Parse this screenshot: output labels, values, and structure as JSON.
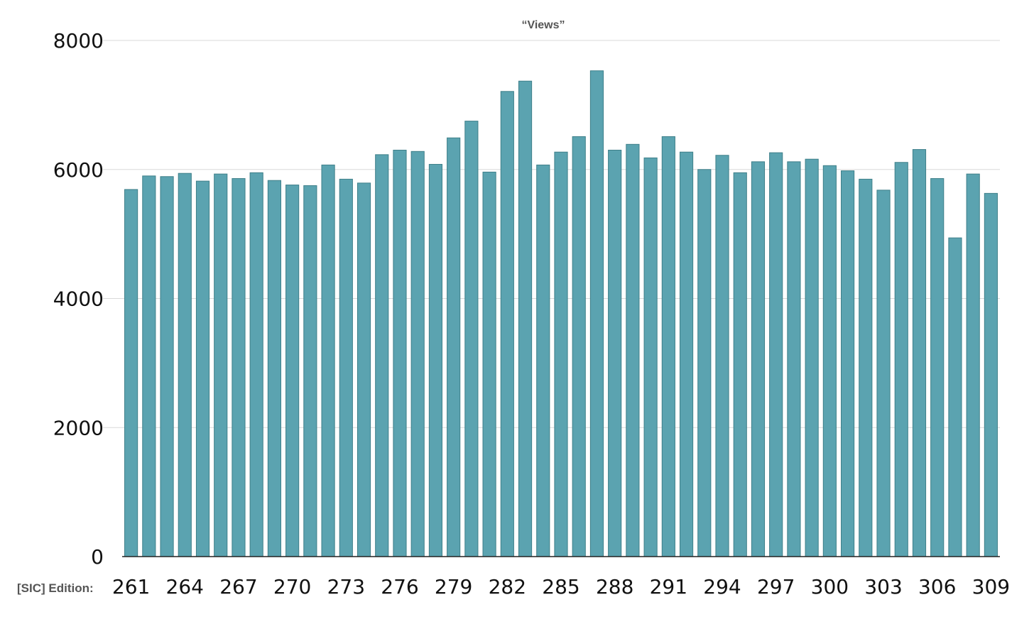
{
  "chart_data": {
    "type": "bar",
    "title": "“Views”",
    "xlabel": "[SIC] Edition:",
    "ylabel": "",
    "ylim": [
      0,
      8000
    ],
    "yticks": [
      "0",
      "2000",
      "4000",
      "6000",
      "8000"
    ],
    "grid": true,
    "bar_color": "#5ba3b0",
    "categories": [
      "261",
      "262",
      "263",
      "264",
      "265",
      "266",
      "267",
      "268",
      "269",
      "270",
      "271",
      "272",
      "273",
      "274",
      "275",
      "276",
      "277",
      "278",
      "279",
      "280",
      "281",
      "282",
      "283",
      "284",
      "285",
      "286",
      "287",
      "288",
      "289",
      "290",
      "291",
      "292",
      "293",
      "294",
      "295",
      "296",
      "297",
      "298",
      "299",
      "300",
      "301",
      "302",
      "303",
      "304",
      "305",
      "306",
      "307",
      "308",
      "309"
    ],
    "x_tick_labels": [
      "261",
      "264",
      "267",
      "270",
      "273",
      "276",
      "279",
      "282",
      "285",
      "288",
      "291",
      "294",
      "297",
      "300",
      "303",
      "306",
      "309"
    ],
    "values": [
      5690,
      5900,
      5890,
      5940,
      5820,
      5930,
      5860,
      5950,
      5830,
      5760,
      5750,
      6070,
      5850,
      5790,
      6230,
      6300,
      6280,
      6080,
      6490,
      6750,
      5960,
      7210,
      7370,
      6070,
      6270,
      6510,
      7530,
      6300,
      6390,
      6180,
      6510,
      6270,
      6000,
      6220,
      5950,
      6120,
      6260,
      6120,
      6160,
      6060,
      5980,
      5850,
      5680,
      6110,
      6310,
      5860,
      4940,
      5930,
      5630
    ]
  }
}
